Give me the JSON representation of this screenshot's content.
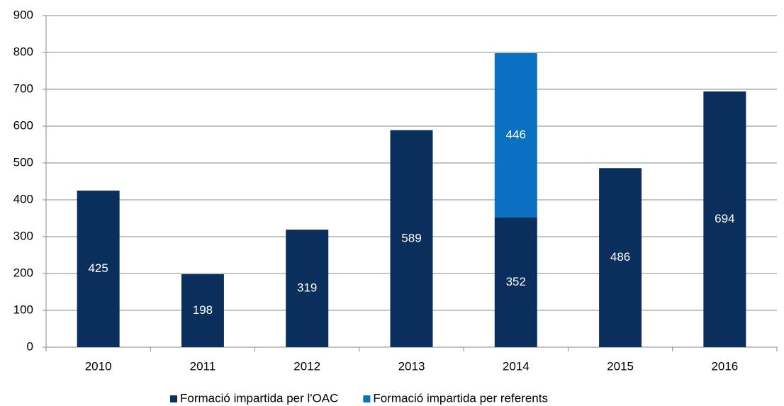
{
  "chart_data": {
    "type": "stacked_bar",
    "categories": [
      "2010",
      "2011",
      "2012",
      "2013",
      "2014",
      "2015",
      "2016"
    ],
    "series": [
      {
        "name": "Formació impartida per l'OAC",
        "color": "#0b2f5c",
        "values": [
          425,
          198,
          319,
          589,
          352,
          486,
          694
        ]
      },
      {
        "name": "Formació impartida per referents",
        "color": "#0a70c0",
        "values": [
          null,
          null,
          null,
          null,
          446,
          null,
          null
        ]
      }
    ],
    "ylim": [
      0,
      900
    ],
    "yticks": [
      0,
      100,
      200,
      300,
      400,
      500,
      600,
      700,
      800,
      900
    ],
    "grid": true,
    "legend": "bottom"
  }
}
